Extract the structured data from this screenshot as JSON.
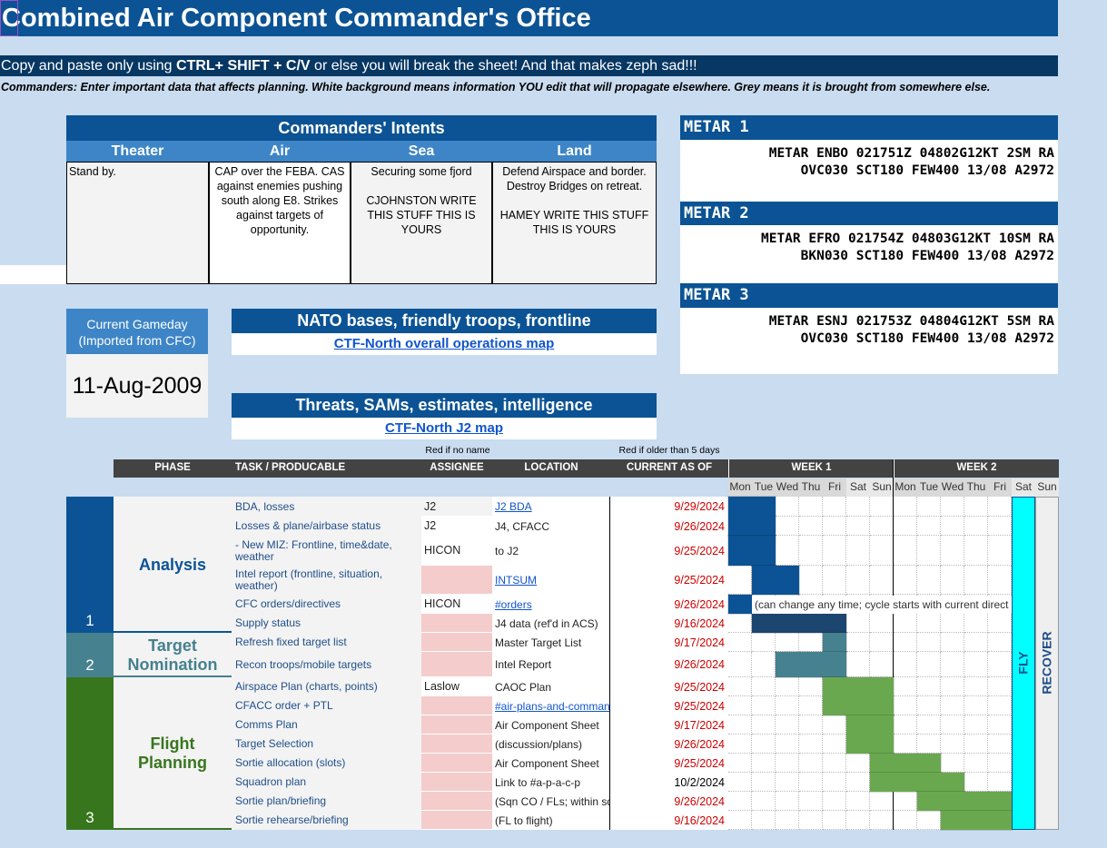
{
  "title": "Combined Air Component Commander's Office",
  "warning": {
    "pre": "Copy and paste only using ",
    "keys": "CTRL+ SHIFT + C/V",
    "post": " or else you will break the sheet! And that makes zeph sad!!!"
  },
  "note": "Commanders: Enter important data that affects planning. White background means information YOU edit that will propagate elsewhere. Grey means it is brought from somewhere else.",
  "intents": {
    "header": "Commanders' Intents",
    "columns": [
      "Theater",
      "Air",
      "Sea",
      "Land"
    ],
    "theater": "Stand by.",
    "air": "CAP over the FEBA. CAS against enemies pushing south along E8. Strikes against targets of opportunity.",
    "sea": "Securing some fjord\n\nCJOHNSTON WRITE THIS STUFF THIS IS YOURS",
    "land": "Defend Airspace and border. Destroy Bridges on retreat.\n\nHAMEY WRITE THIS STUFF THIS IS YOURS"
  },
  "metars": [
    {
      "label": "METAR 1",
      "line1": "METAR ENBO 021751Z 04802G12KT 2SM RA",
      "line2": "OVC030 SCT180 FEW400 13/08 A2972"
    },
    {
      "label": "METAR 2",
      "line1": "METAR EFRO 021754Z 04803G12KT 10SM RA",
      "line2": "BKN030 SCT180 FEW400 13/08 A2972"
    },
    {
      "label": "METAR 3",
      "line1": "METAR ESNJ 021753Z 04804G12KT 5SM RA",
      "line2": "OVC030 SCT180 FEW400 13/08 A2972"
    }
  ],
  "gameday": {
    "label": "Current Gameday (Imported from CFC)",
    "value": "11-Aug-2009"
  },
  "maps": [
    {
      "header": "NATO bases, friendly troops, frontline",
      "link": "CTF-North overall operations map"
    },
    {
      "header": "Threats, SAMs, estimates, intelligence",
      "link": "CTF-North J2 map"
    }
  ],
  "table": {
    "hint_assignee": "Red if no name",
    "hint_current": "Red if older than 5 days",
    "headers": {
      "phase": "PHASE",
      "task": "TASK / PRODUCABLE",
      "assignee": "ASSIGNEE",
      "location": "LOCATION",
      "current": "CURRENT AS OF",
      "week1": "WEEK 1",
      "week2": "WEEK 2"
    },
    "days": [
      "Mon",
      "Tue",
      "Wed",
      "Thu",
      "Fri",
      "Sat",
      "Sun",
      "Mon",
      "Tue",
      "Wed",
      "Thu",
      "Fri",
      "Sat",
      "Sun"
    ],
    "fly": "FLY",
    "recover": "RECOVER",
    "note_text": "(can change any time; cycle starts with current direct",
    "phases": [
      {
        "num": "1",
        "name": "Analysis",
        "color": "#0b5394",
        "text_color": "#0b5394"
      },
      {
        "num": "2",
        "name": "Target Nomination",
        "color": "#45818e",
        "text_color": "#45818e"
      },
      {
        "num": "3",
        "name": "Flight Planning",
        "color": "#38761d",
        "text_color": "#38761d"
      }
    ],
    "rows": [
      {
        "task": "BDA, losses",
        "assignee": "J2",
        "location": "J2 BDA",
        "location_link": true,
        "date": "9/29/2024",
        "date_red": true
      },
      {
        "task": "Losses & plane/airbase status",
        "assignee": "J2",
        "location": "J4, CFACC",
        "location_link": false,
        "date": "9/26/2024",
        "date_red": true
      },
      {
        "task": "- New MIZ: Frontline, time&date, weather",
        "assignee": "HICON",
        "location": "to J2",
        "location_link": false,
        "date": "9/25/2024",
        "date_red": true
      },
      {
        "task": "Intel report (frontline, situation, weather)",
        "assignee": "",
        "location": "INTSUM",
        "location_link": true,
        "date": "9/25/2024",
        "date_red": true
      },
      {
        "task": "CFC orders/directives",
        "assignee": "HICON",
        "location": "#orders",
        "location_link": true,
        "date": "9/26/2024",
        "date_red": true
      },
      {
        "task": "Supply status",
        "assignee": "",
        "location": "J4 data (ref'd in ACS)",
        "location_link": false,
        "date": "9/16/2024",
        "date_red": true
      },
      {
        "task": "Refresh fixed target list",
        "assignee": "",
        "location": "Master Target List",
        "location_link": false,
        "date": "9/17/2024",
        "date_red": true
      },
      {
        "task": "Recon troops/mobile targets",
        "assignee": "",
        "location": "Intel Report",
        "location_link": false,
        "date": "9/26/2024",
        "date_red": true
      },
      {
        "task": "Airspace Plan (charts, points)",
        "assignee": "Laslow",
        "location": "CAOC Plan",
        "location_link": false,
        "date": "9/25/2024",
        "date_red": true
      },
      {
        "task": "CFACC order + PTL",
        "assignee": "",
        "location": "#air-plans-and-comman",
        "location_link": true,
        "date": "9/25/2024",
        "date_red": true
      },
      {
        "task": "Comms Plan",
        "assignee": "",
        "location": "Air Component Sheet",
        "location_link": false,
        "date": "9/17/2024",
        "date_red": true
      },
      {
        "task": "Target Selection",
        "assignee": "",
        "location": "(discussion/plans)",
        "location_link": false,
        "date": "9/26/2024",
        "date_red": true
      },
      {
        "task": "Sortie allocation (slots)",
        "assignee": "",
        "location": "Air Component Sheet",
        "location_link": false,
        "date": "9/25/2024",
        "date_red": true
      },
      {
        "task": "Squadron plan",
        "assignee": "",
        "location": "Link to #a-p-a-c-p",
        "location_link": false,
        "date": "10/2/2024",
        "date_red": false
      },
      {
        "task": "Sortie plan/briefing",
        "assignee": "",
        "location": "(Sqn CO / FLs; within sq",
        "location_link": false,
        "date": "9/26/2024",
        "date_red": true
      },
      {
        "task": "Sortie rehearse/briefing",
        "assignee": "",
        "location": "(FL to flight)",
        "location_link": false,
        "date": "9/16/2024",
        "date_red": true
      }
    ]
  }
}
